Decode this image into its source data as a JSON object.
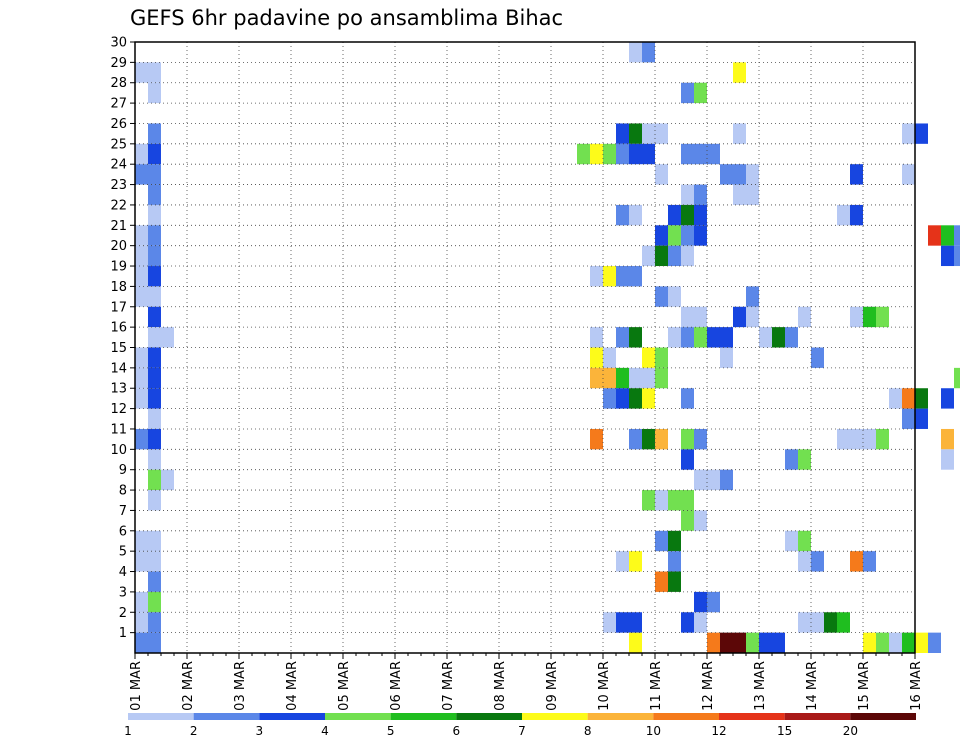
{
  "chart_data": {
    "type": "heatmap",
    "title": "GEFS 6hr padavine po ansamblima Bihac",
    "xlabel": "",
    "ylabel": "",
    "x_ticks": [
      "01 MAR",
      "02 MAR",
      "03 MAR",
      "04 MAR",
      "05 MAR",
      "06 MAR",
      "07 MAR",
      "08 MAR",
      "09 MAR",
      "10 MAR",
      "11 MAR",
      "12 MAR",
      "13 MAR",
      "14 MAR",
      "15 MAR",
      "16 MAR"
    ],
    "y_ticks": [
      1,
      2,
      3,
      4,
      5,
      6,
      7,
      8,
      9,
      10,
      11,
      12,
      13,
      14,
      15,
      16,
      17,
      18,
      19,
      20,
      21,
      22,
      23,
      24,
      25,
      26,
      27,
      28,
      29,
      30
    ],
    "x_range_days": [
      0,
      15
    ],
    "y_range": [
      0,
      30
    ],
    "grid": true,
    "legend": {
      "placement": "bottom",
      "labels": [
        "1",
        "2",
        "3",
        "4",
        "5",
        "6",
        "7",
        "8",
        "10",
        "12",
        "15",
        "20"
      ],
      "colors": [
        "#b7c9f4",
        "#5b87e8",
        "#1745e0",
        "#72e050",
        "#1fbe1f",
        "#08780f",
        "#fdfb1a",
        "#fbb43a",
        "#f57a1b",
        "#e53319",
        "#a91918",
        "#5c0707"
      ]
    },
    "cells_note": "each cell: [x0_day, x1_day, ensemble_member, color_index(1-12)]",
    "cells": [
      [
        9.5,
        9.75,
        30,
        1
      ],
      [
        9.75,
        10.0,
        30,
        2
      ],
      [
        0.0,
        0.5,
        29,
        1
      ],
      [
        11.5,
        11.75,
        29,
        7
      ],
      [
        0.25,
        0.5,
        28,
        1
      ],
      [
        10.5,
        10.75,
        28,
        2
      ],
      [
        10.75,
        11.0,
        28,
        4
      ],
      [
        0.25,
        0.5,
        26,
        2
      ],
      [
        9.25,
        9.5,
        26,
        3
      ],
      [
        9.5,
        9.75,
        26,
        6
      ],
      [
        9.75,
        10.25,
        26,
        1
      ],
      [
        11.5,
        11.75,
        26,
        1
      ],
      [
        14.75,
        15.0,
        26,
        1
      ],
      [
        15.0,
        15.25,
        26,
        3
      ],
      [
        0.0,
        0.25,
        25,
        1
      ],
      [
        0.25,
        0.5,
        25,
        3
      ],
      [
        8.5,
        8.75,
        25,
        4
      ],
      [
        8.75,
        9.0,
        25,
        7
      ],
      [
        9.0,
        9.25,
        25,
        4
      ],
      [
        9.25,
        9.5,
        25,
        2
      ],
      [
        9.5,
        10.0,
        25,
        3
      ],
      [
        10.5,
        11.25,
        25,
        2
      ],
      [
        0.0,
        0.5,
        24,
        2
      ],
      [
        10.0,
        10.25,
        24,
        1
      ],
      [
        11.25,
        11.75,
        24,
        2
      ],
      [
        11.75,
        12.0,
        24,
        1
      ],
      [
        13.75,
        14.0,
        24,
        3
      ],
      [
        14.75,
        15.0,
        24,
        1
      ],
      [
        0.25,
        0.5,
        23,
        2
      ],
      [
        10.5,
        10.75,
        23,
        1
      ],
      [
        10.75,
        11.0,
        23,
        2
      ],
      [
        11.5,
        12.0,
        23,
        1
      ],
      [
        0.25,
        0.5,
        22,
        1
      ],
      [
        9.25,
        9.5,
        22,
        2
      ],
      [
        9.5,
        9.75,
        22,
        1
      ],
      [
        10.25,
        10.5,
        22,
        3
      ],
      [
        10.5,
        10.75,
        22,
        6
      ],
      [
        10.75,
        11.0,
        22,
        3
      ],
      [
        13.5,
        13.75,
        22,
        1
      ],
      [
        13.75,
        14.0,
        22,
        3
      ],
      [
        0.0,
        0.25,
        21,
        1
      ],
      [
        0.25,
        0.5,
        21,
        2
      ],
      [
        10.0,
        10.25,
        21,
        3
      ],
      [
        10.25,
        10.5,
        21,
        4
      ],
      [
        10.5,
        10.75,
        21,
        2
      ],
      [
        10.75,
        11.0,
        21,
        3
      ],
      [
        15.25,
        15.5,
        21,
        10
      ],
      [
        15.5,
        15.75,
        21,
        5
      ],
      [
        15.75,
        16.0,
        21,
        2
      ],
      [
        0.0,
        0.25,
        20,
        1
      ],
      [
        0.25,
        0.5,
        20,
        2
      ],
      [
        9.75,
        10.0,
        20,
        1
      ],
      [
        10.0,
        10.25,
        20,
        6
      ],
      [
        10.25,
        10.5,
        20,
        2
      ],
      [
        10.5,
        10.75,
        20,
        1
      ],
      [
        15.5,
        15.75,
        20,
        3
      ],
      [
        15.75,
        16.0,
        20,
        2
      ],
      [
        0.0,
        0.25,
        19,
        1
      ],
      [
        0.25,
        0.5,
        19,
        3
      ],
      [
        8.75,
        9.0,
        19,
        1
      ],
      [
        9.0,
        9.25,
        19,
        7
      ],
      [
        9.25,
        9.75,
        19,
        2
      ],
      [
        0.0,
        0.5,
        18,
        1
      ],
      [
        10.0,
        10.25,
        18,
        2
      ],
      [
        10.25,
        10.5,
        18,
        1
      ],
      [
        11.75,
        12.0,
        18,
        2
      ],
      [
        0.25,
        0.5,
        17,
        3
      ],
      [
        10.5,
        11.0,
        17,
        1
      ],
      [
        11.5,
        11.75,
        17,
        3
      ],
      [
        11.75,
        12.0,
        17,
        1
      ],
      [
        12.75,
        13.0,
        17,
        1
      ],
      [
        13.75,
        14.0,
        17,
        1
      ],
      [
        14.0,
        14.25,
        17,
        5
      ],
      [
        14.25,
        14.5,
        17,
        4
      ],
      [
        0.25,
        0.5,
        16,
        1
      ],
      [
        0.5,
        0.75,
        16,
        1
      ],
      [
        8.75,
        9.0,
        16,
        1
      ],
      [
        9.25,
        9.5,
        16,
        2
      ],
      [
        9.5,
        9.75,
        16,
        6
      ],
      [
        10.25,
        10.5,
        16,
        1
      ],
      [
        10.5,
        10.75,
        16,
        2
      ],
      [
        10.75,
        11.0,
        16,
        4
      ],
      [
        11.0,
        11.5,
        16,
        3
      ],
      [
        12.0,
        12.25,
        16,
        1
      ],
      [
        12.25,
        12.5,
        16,
        6
      ],
      [
        12.5,
        12.75,
        16,
        2
      ],
      [
        0.0,
        0.25,
        15,
        1
      ],
      [
        0.25,
        0.5,
        15,
        3
      ],
      [
        8.75,
        9.0,
        15,
        7
      ],
      [
        9.0,
        9.25,
        15,
        1
      ],
      [
        9.75,
        10.0,
        15,
        7
      ],
      [
        10.0,
        10.25,
        15,
        4
      ],
      [
        11.25,
        11.5,
        15,
        1
      ],
      [
        13.0,
        13.25,
        15,
        2
      ],
      [
        0.0,
        0.25,
        14,
        1
      ],
      [
        0.25,
        0.5,
        14,
        3
      ],
      [
        8.75,
        9.25,
        14,
        8
      ],
      [
        9.25,
        9.5,
        14,
        5
      ],
      [
        9.5,
        10.0,
        14,
        1
      ],
      [
        10.0,
        10.25,
        14,
        4
      ],
      [
        15.75,
        16.0,
        14,
        4
      ],
      [
        0.0,
        0.25,
        13,
        1
      ],
      [
        0.25,
        0.5,
        13,
        3
      ],
      [
        9.0,
        9.25,
        13,
        2
      ],
      [
        9.25,
        9.5,
        13,
        3
      ],
      [
        9.5,
        9.75,
        13,
        6
      ],
      [
        9.75,
        10.0,
        13,
        7
      ],
      [
        10.5,
        10.75,
        13,
        2
      ],
      [
        14.5,
        14.75,
        13,
        1
      ],
      [
        14.75,
        15.0,
        13,
        9
      ],
      [
        15.0,
        15.25,
        13,
        6
      ],
      [
        15.5,
        15.75,
        13,
        3
      ],
      [
        0.25,
        0.5,
        12,
        1
      ],
      [
        14.75,
        15.0,
        12,
        2
      ],
      [
        15.0,
        15.25,
        12,
        3
      ],
      [
        0.0,
        0.25,
        11,
        2
      ],
      [
        0.25,
        0.5,
        11,
        3
      ],
      [
        8.75,
        9.0,
        11,
        9
      ],
      [
        9.5,
        9.75,
        11,
        2
      ],
      [
        9.75,
        10.0,
        11,
        6
      ],
      [
        10.0,
        10.25,
        11,
        8
      ],
      [
        10.5,
        10.75,
        11,
        4
      ],
      [
        10.75,
        11.0,
        11,
        2
      ],
      [
        13.5,
        14.25,
        11,
        1
      ],
      [
        14.25,
        14.5,
        11,
        4
      ],
      [
        15.5,
        15.75,
        11,
        8
      ],
      [
        0.25,
        0.5,
        10,
        1
      ],
      [
        10.5,
        10.75,
        10,
        3
      ],
      [
        12.5,
        12.75,
        10,
        2
      ],
      [
        12.75,
        13.0,
        10,
        4
      ],
      [
        15.5,
        15.75,
        10,
        1
      ],
      [
        0.25,
        0.5,
        9,
        4
      ],
      [
        0.5,
        0.75,
        9,
        1
      ],
      [
        10.75,
        11.25,
        9,
        1
      ],
      [
        11.25,
        11.5,
        9,
        2
      ],
      [
        0.25,
        0.5,
        8,
        1
      ],
      [
        9.75,
        10.0,
        8,
        4
      ],
      [
        10.0,
        10.25,
        8,
        1
      ],
      [
        10.25,
        10.75,
        8,
        4
      ],
      [
        10.5,
        10.75,
        7,
        4
      ],
      [
        10.75,
        11.0,
        7,
        1
      ],
      [
        0.0,
        0.5,
        6,
        1
      ],
      [
        10.0,
        10.25,
        6,
        2
      ],
      [
        10.25,
        10.5,
        6,
        6
      ],
      [
        12.5,
        12.75,
        6,
        1
      ],
      [
        12.75,
        13.0,
        6,
        4
      ],
      [
        0.0,
        0.5,
        5,
        1
      ],
      [
        9.25,
        9.5,
        5,
        1
      ],
      [
        9.5,
        9.75,
        5,
        7
      ],
      [
        10.25,
        10.5,
        5,
        2
      ],
      [
        12.75,
        13.0,
        5,
        1
      ],
      [
        13.0,
        13.25,
        5,
        2
      ],
      [
        13.75,
        14.0,
        5,
        9
      ],
      [
        14.0,
        14.25,
        5,
        2
      ],
      [
        0.25,
        0.5,
        4,
        2
      ],
      [
        10.0,
        10.25,
        4,
        9
      ],
      [
        10.25,
        10.5,
        4,
        6
      ],
      [
        0.0,
        0.25,
        3,
        1
      ],
      [
        0.25,
        0.5,
        3,
        4
      ],
      [
        10.75,
        11.0,
        3,
        3
      ],
      [
        11.0,
        11.25,
        3,
        2
      ],
      [
        0.0,
        0.25,
        2,
        1
      ],
      [
        0.25,
        0.5,
        2,
        2
      ],
      [
        9.0,
        9.25,
        2,
        1
      ],
      [
        9.25,
        9.75,
        2,
        3
      ],
      [
        10.5,
        10.75,
        2,
        3
      ],
      [
        10.75,
        11.0,
        2,
        1
      ],
      [
        12.75,
        13.25,
        2,
        1
      ],
      [
        13.25,
        13.5,
        2,
        6
      ],
      [
        13.5,
        13.75,
        2,
        5
      ],
      [
        0.0,
        0.5,
        1,
        2
      ],
      [
        9.5,
        9.75,
        1,
        7
      ],
      [
        11.0,
        11.25,
        1,
        9
      ],
      [
        11.25,
        11.75,
        1,
        12
      ],
      [
        11.75,
        12.0,
        1,
        4
      ],
      [
        12.0,
        12.5,
        1,
        3
      ],
      [
        14.0,
        14.25,
        1,
        7
      ],
      [
        14.25,
        14.5,
        1,
        4
      ],
      [
        14.5,
        14.75,
        1,
        1
      ],
      [
        14.75,
        15.0,
        1,
        5
      ],
      [
        15.0,
        15.25,
        1,
        7
      ],
      [
        15.25,
        15.5,
        1,
        2
      ]
    ]
  }
}
